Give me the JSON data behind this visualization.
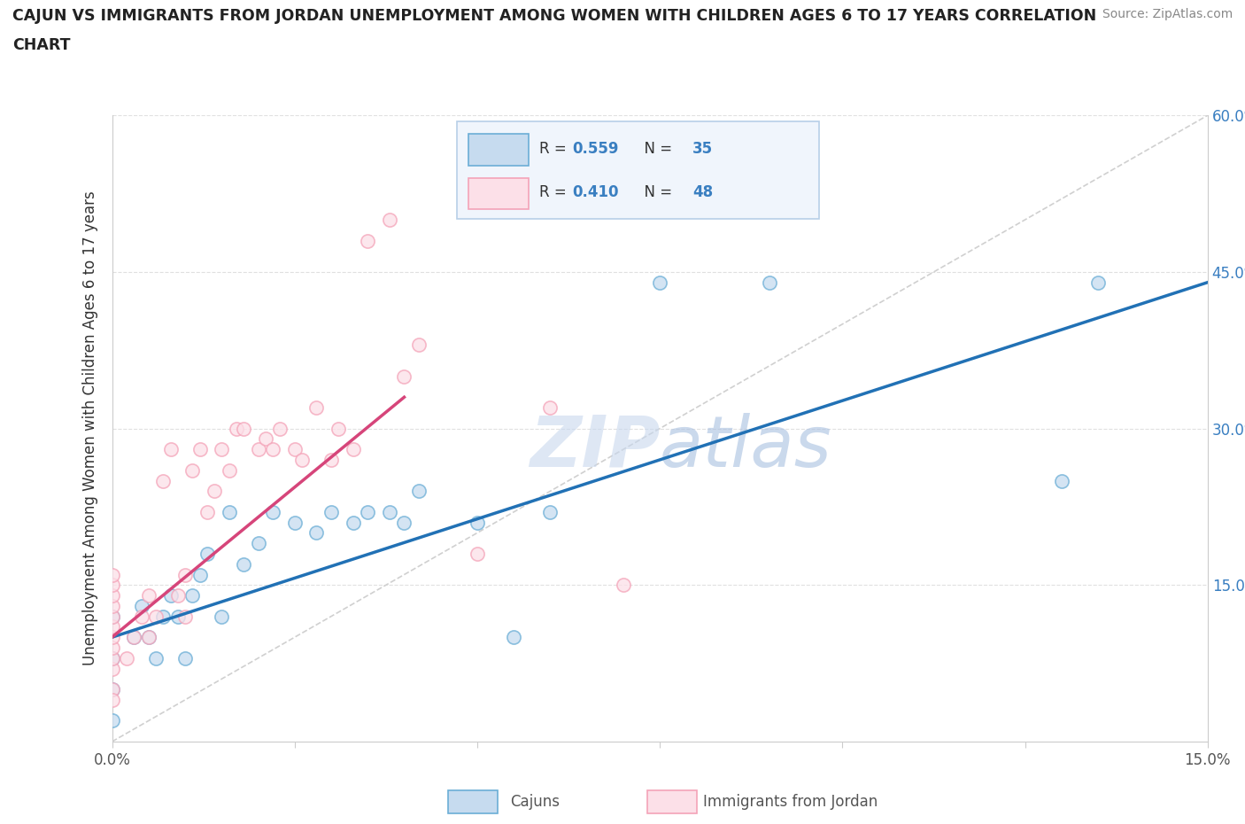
{
  "title_line1": "CAJUN VS IMMIGRANTS FROM JORDAN UNEMPLOYMENT AMONG WOMEN WITH CHILDREN AGES 6 TO 17 YEARS CORRELATION",
  "title_line2": "CHART",
  "source": "Source: ZipAtlas.com",
  "ylabel": "Unemployment Among Women with Children Ages 6 to 17 years",
  "xmin": 0.0,
  "xmax": 0.15,
  "ymin": 0.0,
  "ymax": 0.6,
  "cajun_color": "#6baed6",
  "cajun_color_light": "#c6dbef",
  "jordan_color": "#f4a3b8",
  "jordan_color_light": "#fce0e8",
  "cajun_line_color": "#2171b5",
  "jordan_line_color": "#d6457a",
  "diagonal_color": "#d0d0d0",
  "watermark_color": "#c8d8ee",
  "cajun_R": "0.559",
  "cajun_N": "35",
  "jordan_R": "0.410",
  "jordan_N": "48",
  "cajun_x": [
    0.0,
    0.0,
    0.0,
    0.0,
    0.003,
    0.004,
    0.005,
    0.006,
    0.007,
    0.008,
    0.009,
    0.01,
    0.011,
    0.012,
    0.013,
    0.015,
    0.016,
    0.018,
    0.02,
    0.022,
    0.025,
    0.028,
    0.03,
    0.033,
    0.035,
    0.038,
    0.04,
    0.042,
    0.05,
    0.055,
    0.06,
    0.075,
    0.09,
    0.13,
    0.135
  ],
  "cajun_y": [
    0.08,
    0.05,
    0.02,
    0.12,
    0.1,
    0.13,
    0.1,
    0.08,
    0.12,
    0.14,
    0.12,
    0.08,
    0.14,
    0.16,
    0.18,
    0.12,
    0.22,
    0.17,
    0.19,
    0.22,
    0.21,
    0.2,
    0.22,
    0.21,
    0.22,
    0.22,
    0.21,
    0.24,
    0.21,
    0.1,
    0.22,
    0.44,
    0.44,
    0.25,
    0.44
  ],
  "jordan_x": [
    0.0,
    0.0,
    0.0,
    0.0,
    0.0,
    0.0,
    0.0,
    0.0,
    0.0,
    0.0,
    0.0,
    0.0,
    0.002,
    0.003,
    0.004,
    0.005,
    0.005,
    0.006,
    0.007,
    0.008,
    0.009,
    0.01,
    0.01,
    0.011,
    0.012,
    0.013,
    0.014,
    0.015,
    0.016,
    0.017,
    0.018,
    0.02,
    0.021,
    0.022,
    0.023,
    0.025,
    0.026,
    0.028,
    0.03,
    0.031,
    0.033,
    0.035,
    0.038,
    0.04,
    0.042,
    0.05,
    0.06,
    0.07
  ],
  "jordan_y": [
    0.07,
    0.08,
    0.09,
    0.1,
    0.11,
    0.12,
    0.13,
    0.14,
    0.15,
    0.16,
    0.05,
    0.04,
    0.08,
    0.1,
    0.12,
    0.1,
    0.14,
    0.12,
    0.25,
    0.28,
    0.14,
    0.12,
    0.16,
    0.26,
    0.28,
    0.22,
    0.24,
    0.28,
    0.26,
    0.3,
    0.3,
    0.28,
    0.29,
    0.28,
    0.3,
    0.28,
    0.27,
    0.32,
    0.27,
    0.3,
    0.28,
    0.48,
    0.5,
    0.35,
    0.38,
    0.18,
    0.32,
    0.15
  ]
}
